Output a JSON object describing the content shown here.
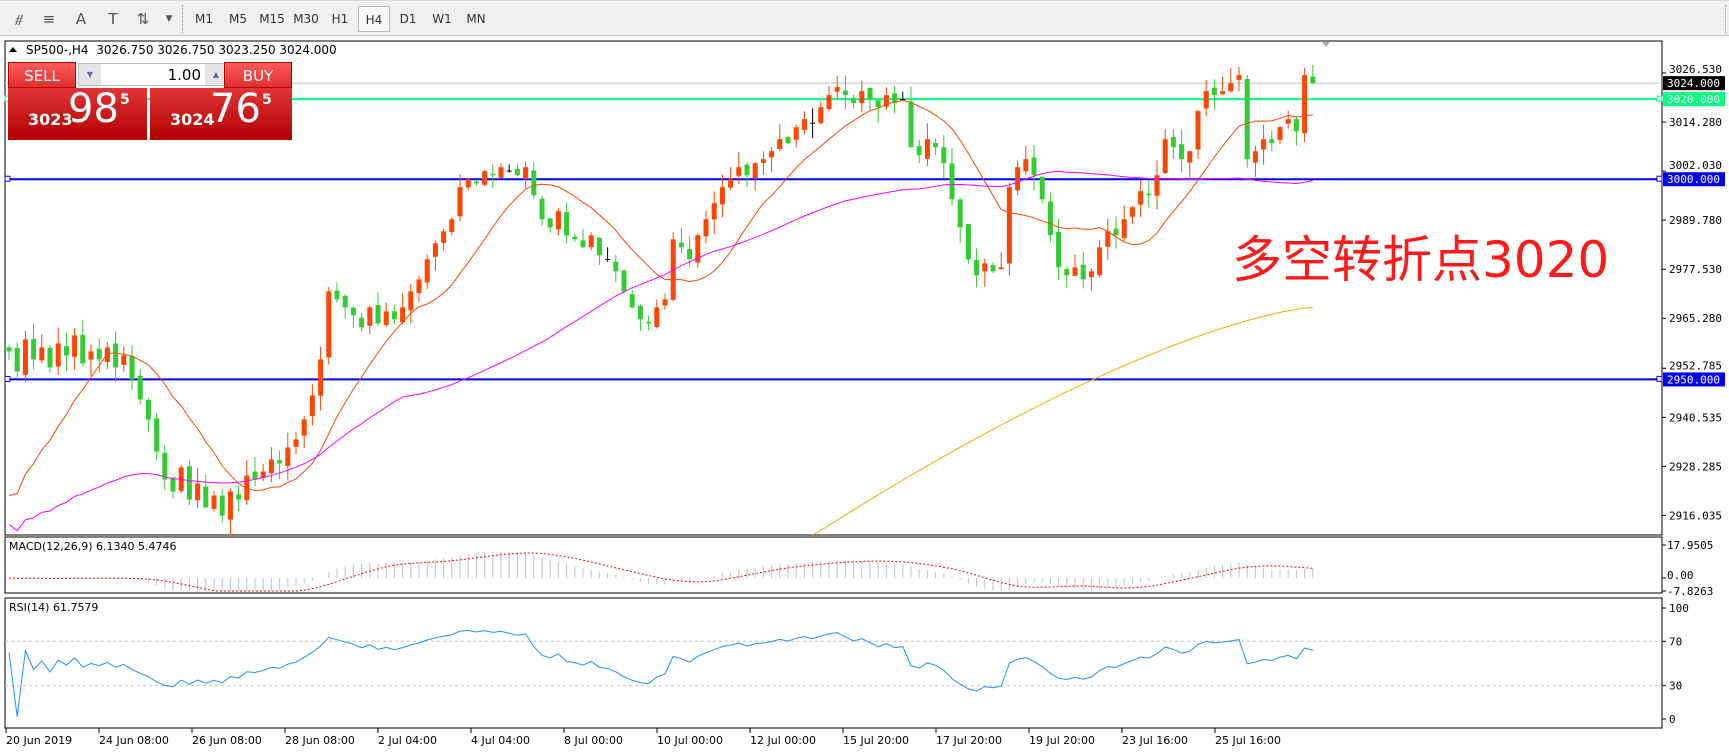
{
  "toolbar": {
    "icons": [
      "elliott-wave-icon",
      "fibonacci-icon",
      "text-icon",
      "text-label-icon",
      "arrows-icon"
    ],
    "icon_glyphs": [
      "⧣",
      "≡",
      "A",
      "T",
      "⇅"
    ],
    "timeframes": [
      "M1",
      "M5",
      "M15",
      "M30",
      "H1",
      "H4",
      "D1",
      "W1",
      "MN"
    ],
    "active_timeframe": "H4"
  },
  "chart_header": {
    "symbol": "SP500-,H4",
    "ohlc": "3026.750 3026.750 3023.250 3024.000"
  },
  "one_click": {
    "sell_label": "SELL",
    "buy_label": "BUY",
    "lot": "1.00",
    "sell_big": "3023",
    "sell_digits": "98",
    "sell_sup": "5",
    "buy_big": "3024",
    "buy_digits": "76",
    "buy_sup": "5"
  },
  "annotation": "多空转折点3020",
  "indicators": {
    "macd_label": "MACD(12,26,9) 6.1340 5.4746",
    "rsi_label": "RSI(14) 61.7579"
  },
  "colors": {
    "bull": "#ff4500",
    "bear": "#32cd32",
    "doji": "#000000",
    "ma_fast": "#ff4500",
    "ma_mid": "#ff00ff",
    "ma_slow": "#ffa500",
    "level_green": "#00ff7f",
    "level_blue": "#0000ff",
    "rsi": "#1e90ff",
    "macd_hist": "#c0c0c0",
    "macd_signal": "#ff0000"
  },
  "chart_data": {
    "type": "candlestick",
    "symbol": "SP500-",
    "timeframe": "H4",
    "ylim": [
      2904,
      3034
    ],
    "price_ticks": [
      "3026.530",
      "3014.280",
      "3002.030",
      "2989.780",
      "2977.530",
      "2965.280",
      "2952.785",
      "2940.535",
      "2928.285",
      "2916.035"
    ],
    "date_ticks": [
      "20 Jun 2019",
      "24 Jun 08:00",
      "26 Jun 08:00",
      "28 Jun 08:00",
      "2 Jul 04:00",
      "4 Jul 04:00",
      "8 Jul 00:00",
      "10 Jul 00:00",
      "12 Jul 00:00",
      "15 Jul 20:00",
      "17 Jul 20:00",
      "19 Jul 20:00",
      "23 Jul 16:00",
      "25 Jul 16:00"
    ],
    "closes": [
      2957,
      2952,
      2960,
      2955,
      2958,
      2953,
      2959,
      2956,
      2961,
      2954,
      2957,
      2955,
      2958,
      2953,
      2956,
      2950,
      2945,
      2940,
      2932,
      2925,
      2922,
      2928,
      2920,
      2924,
      2918,
      2921,
      2916,
      2922,
      2920,
      2926,
      2925,
      2927,
      2930,
      2929,
      2933,
      2935,
      2940,
      2946,
      2955,
      2972,
      2970,
      2968,
      2966,
      2963,
      2968,
      2964,
      2967,
      2965,
      2968,
      2972,
      2975,
      2980,
      2984,
      2987,
      2990,
      2998,
      3000,
      2999,
      3002,
      3001,
      3003,
      3002,
      3001,
      3003,
      2996,
      2990,
      2988,
      2992,
      2986,
      2985,
      2983,
      2986,
      2981,
      2980,
      2977,
      2972,
      2968,
      2965,
      2964,
      2968,
      2970,
      2985,
      2983,
      2980,
      2986,
      2990,
      2994,
      2998,
      3000,
      3003,
      3001,
      3004,
      3005,
      3007,
      3010,
      3009,
      3013,
      3015,
      3014,
      3018,
      3021,
      3023,
      3021,
      3019,
      3022,
      3020,
      3018,
      3021,
      3019,
      3020,
      3008,
      3006,
      3010,
      3008,
      3004,
      2995,
      2988,
      2980,
      2976,
      2979,
      2977,
      2978,
      2998,
      3003,
      3005,
      3001,
      2995,
      2986,
      2978,
      2976,
      2978,
      2975,
      2977,
      2983,
      2987,
      2986,
      2990,
      2993,
      2997,
      2996,
      3001,
      3010,
      3008,
      3005,
      3007,
      3017,
      3022,
      3021,
      3022,
      3024,
      3026,
      3005,
      3007,
      3010,
      3009,
      3013,
      3015,
      3012,
      3026,
      3024
    ],
    "ma_slow": {
      "start_index": 98,
      "start": 2911,
      "end": 2968
    },
    "levels": [
      {
        "price": 3020,
        "label": "3020.000",
        "color": "#00ff7f"
      },
      {
        "price": 3000,
        "label": "3000.000",
        "color": "#0000ff"
      },
      {
        "price": 2950,
        "label": "2950.000",
        "color": "#0000ff"
      }
    ],
    "current_price": {
      "price": 3024,
      "label": "3024.000"
    },
    "macd": {
      "ticks": [
        "17.9505",
        "0.00",
        "-7.8263"
      ],
      "last_macd": 6.134,
      "last_signal": 5.4746
    },
    "rsi": {
      "ticks": [
        "100",
        "70",
        "30",
        "0"
      ],
      "levels": [
        70,
        30
      ],
      "last": 61.7579
    }
  }
}
